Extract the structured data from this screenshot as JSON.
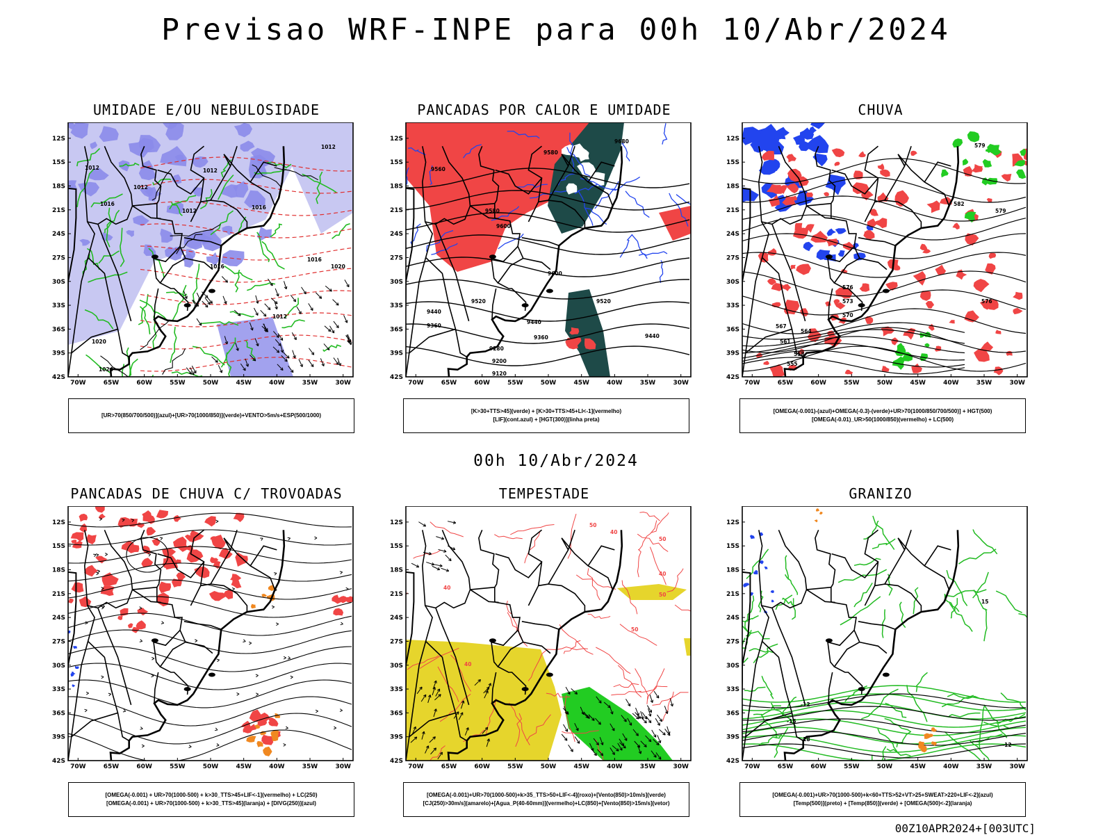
{
  "header": {
    "title": "Previsao WRF-INPE  para 00h 10/Abr/2024",
    "subtitle": "00h 10/Abr/2024",
    "footer": "00Z10APR2024+[003UTC]"
  },
  "axes": {
    "lat_labels": [
      "12S",
      "15S",
      "18S",
      "21S",
      "24S",
      "27S",
      "30S",
      "33S",
      "36S",
      "39S",
      "42S"
    ],
    "lon_labels": [
      "70W",
      "65W",
      "60W",
      "55W",
      "50W",
      "45W",
      "40W",
      "35W",
      "30W"
    ]
  },
  "colors": {
    "humidity_mid": "#8b8bea",
    "humidity_low": "#c8c8f2",
    "humidity_green": "#22bb22",
    "red_field": "#f04545",
    "dark_teal": "#1e4a48",
    "blue_contour": "#2244ee",
    "orange": "#f08820",
    "yellow": "#e6d52c",
    "green_vector": "#22cc22",
    "black_line": "#000000"
  },
  "panels": [
    {
      "title": "UMIDADE E/OU NEBULOSIDADE",
      "legend": [
        "[UR>70(850/700/500)](azul)+[UR>70(1000/850)](verde)+VENTO>5m/s+ESP(500/1000)"
      ],
      "contour_labels": [
        "1012",
        "1012",
        "1012",
        "1016",
        "1016",
        "1012",
        "1016",
        "1020",
        "1012",
        "1016",
        "1020",
        "1024",
        "1012"
      ]
    },
    {
      "title": "PANCADAS POR CALOR E UMIDADE",
      "legend": [
        "[K>30+TTS>45](verde)  +  [K>30+TTS>45+LI<-1](vermelho)",
        "[LIF](cont.azul)  +  [HGT(300)](linha preta)"
      ],
      "contour_labels": [
        "9560",
        "9580",
        "9580",
        "9600",
        "9600",
        "9520",
        "9440",
        "9360",
        "9440",
        "9360",
        "9280",
        "9200",
        "9120",
        "9520",
        "9440",
        "9680"
      ]
    },
    {
      "title": "CHUVA",
      "legend": [
        "[OMEGA(-0.001)-(azul)+OMEGA(-0.3)-(verde)+UR>70(1000/850/700/500)]  +  HGT(500)",
        "[OMEGA(-0.01)_UR>50(1000/850)(vermelho)  +  LC(500)"
      ],
      "contour_labels": [
        "582",
        "579",
        "576",
        "573",
        "570",
        "567",
        "564",
        "561",
        "558",
        "555",
        "576",
        "579"
      ]
    },
    {
      "title": "PANCADAS DE CHUVA C/ TROVOADAS",
      "legend": [
        "[OMEGA(-0.001)  +  UR>70(1000-500)  +  k>30_TTS>45+LIF<-1](vermelho)  +  LC(250)",
        "[OMEGA(-0.001)  +  UR>70(1000-500)  +  k>30_TTS>45](laranja)  +  [DIVG(250)](azul)"
      ],
      "contour_labels": []
    },
    {
      "title": "TEMPESTADE",
      "legend": [
        "[OMEGA(-0.001)+UR>70(1000-500)+k>35_TTS>50+LIF<-4](roxo)+[Vento(850)>10m/s](verde)",
        "[CJ(250)>30m/s](amarelo)+[Agua_P(40-60mm)](vermelho)+LC(850)+[Vento(850)>15m/s](vetor)"
      ],
      "contour_labels": [
        "50",
        "40",
        "50",
        "40",
        "50",
        "40",
        "50",
        "40"
      ]
    },
    {
      "title": "GRANIZO",
      "legend": [
        "[OMEGA(-0.001)+UR>70(1000-500)+k<60+TTS>52+VT>25+SWEAT>220+LIF<-2](azul)",
        "[Temp(500)](preto)  +  [Temp(850)](verde)  +  [OMEGA(500)<-2](laranja)"
      ],
      "contour_labels": [
        "-12",
        "-15",
        "-18",
        "-12",
        "15"
      ]
    }
  ]
}
